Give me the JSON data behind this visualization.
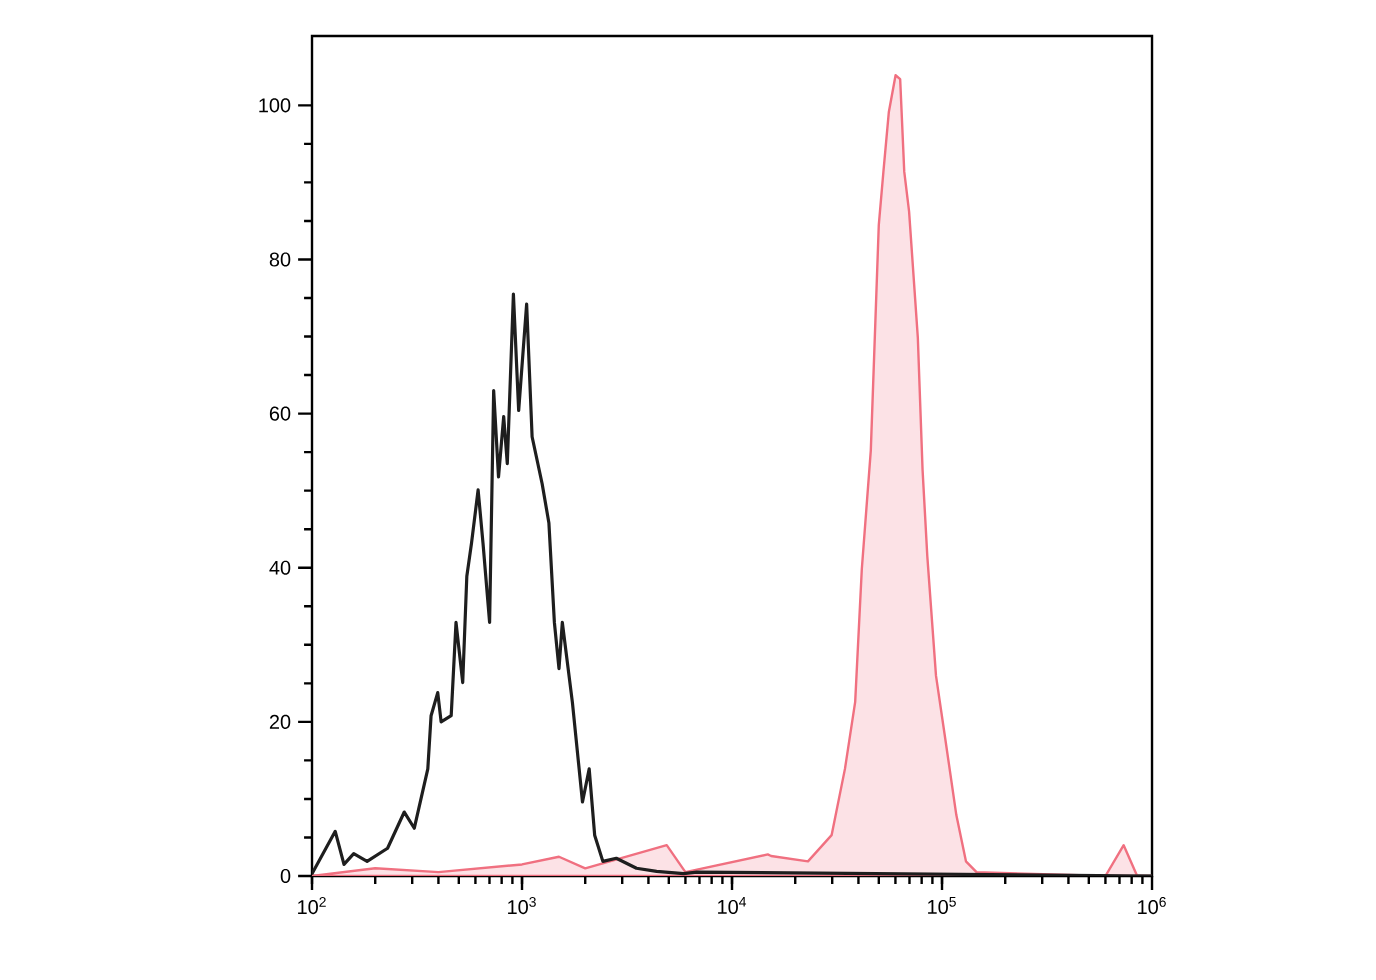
{
  "chart_data": {
    "type": "area",
    "log": "x",
    "xlim": [
      100,
      1000000
    ],
    "ylim": [
      0,
      109
    ],
    "xticks": [
      {
        "value": 100,
        "label": "10$^{2}$"
      },
      {
        "value": 1000,
        "label": "10$^{3}$"
      },
      {
        "value": 10000,
        "label": "10$^{4}$"
      },
      {
        "value": 100000,
        "label": "10$^{5}$"
      },
      {
        "value": 1000000,
        "label": "10$^{6}$"
      }
    ],
    "yticks": [
      0,
      20,
      40,
      60,
      80,
      100
    ],
    "x": [
      100,
      129,
      142,
      158,
      183,
      229,
      275,
      307,
      356,
      369,
      397,
      412,
      460,
      485,
      522,
      546,
      575,
      618,
      652,
      701,
      733,
      773,
      818,
      851,
      910,
      964,
      1052,
      1117,
      1247,
      1343,
      1426,
      1500,
      1556,
      1738,
      1941,
      2089,
      2218,
      2427,
      2812,
      3508,
      4375,
      5875,
      6808,
      1000000
    ],
    "series": [
      {
        "type": "line",
        "color": "#1e1e1e",
        "values": [
          0.3,
          5.8,
          1.5,
          2.9,
          1.9,
          3.6,
          8.3,
          6.2,
          13.9,
          20.8,
          23.8,
          20,
          20.8,
          32.9,
          25.1,
          38.9,
          43.2,
          50.1,
          43.2,
          32.9,
          63,
          51.8,
          59.6,
          53.5,
          75.5,
          60.4,
          74.2,
          57,
          50.9,
          45.8,
          32.9,
          26.9,
          32.9,
          22.5,
          9.6,
          13.9,
          5.3,
          1.9,
          2.3,
          1,
          0.6,
          0.3,
          0.5,
          0
        ]
      },
      {
        "color": "#f07080",
        "x": [
          100,
          200,
          400,
          1000,
          1500,
          2000,
          4887,
          6000,
          14800,
          15350,
          23000,
          29800,
          34500,
          38600,
          41500,
          45800,
          50000,
          52600,
          55800,
          60100,
          63200,
          66100,
          69700,
          76700,
          80800,
          85100,
          93600,
          103000,
          117000,
          130000,
          146000,
          600000,
          733000,
          850000,
          1000000
        ],
        "values": [
          0,
          1,
          0.5,
          1.5,
          2.5,
          1,
          4,
          0.5,
          2.8,
          2.6,
          1.9,
          5.3,
          13.9,
          22.6,
          39.8,
          55.2,
          84.5,
          91.4,
          99.1,
          103.9,
          103.4,
          91.4,
          86.2,
          69.9,
          52.7,
          41.5,
          26,
          18.3,
          7.9,
          1.9,
          0.5,
          0,
          4,
          0,
          0
        ]
      }
    ]
  }
}
